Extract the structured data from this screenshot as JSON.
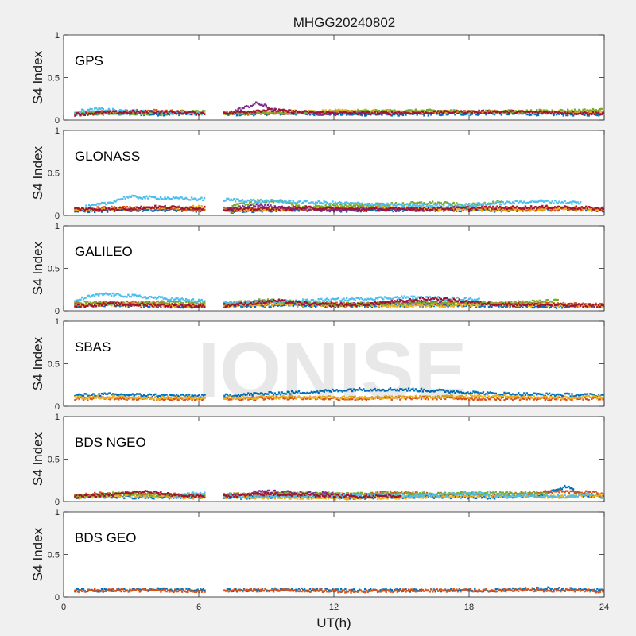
{
  "figure": {
    "title": "MHGG20240802",
    "xlabel": "UT(h)",
    "watermark": "IONISE"
  },
  "chart_data": {
    "type": "scatter",
    "title": "MHGG20240802",
    "xlabel": "UT(h)",
    "ylabel": "S4 Index",
    "xlim": [
      0,
      24
    ],
    "ylim": [
      0,
      1
    ],
    "xticks": [
      0,
      6,
      12,
      18,
      24
    ],
    "yticks": [
      0,
      0.5,
      1
    ],
    "ytick_labels": [
      "0",
      "0.5",
      "1"
    ],
    "grid": false,
    "data_gap": [
      6.3,
      7.1
    ],
    "colors": [
      "#0072BD",
      "#D95319",
      "#EDB120",
      "#7E2F8E",
      "#77AC30",
      "#4DBEEE",
      "#A2142F"
    ],
    "panels": [
      {
        "label": "GPS",
        "series": [
          {
            "color": "#0072BD",
            "x": [
              0.5,
              2,
              4,
              6,
              7.5,
              10,
              13,
              16,
              19,
              22,
              24
            ],
            "y": [
              0.07,
              0.08,
              0.07,
              0.08,
              0.07,
              0.08,
              0.07,
              0.07,
              0.08,
              0.07,
              0.07
            ]
          },
          {
            "color": "#D95319",
            "x": [
              0.5,
              2,
              4,
              6,
              7.5,
              10,
              13,
              16,
              19,
              22,
              24
            ],
            "y": [
              0.09,
              0.1,
              0.11,
              0.09,
              0.08,
              0.09,
              0.1,
              0.09,
              0.1,
              0.09,
              0.09
            ]
          },
          {
            "color": "#EDB120",
            "x": [
              0.5,
              2,
              4,
              6,
              7.5,
              10,
              13,
              16,
              19,
              22,
              24
            ],
            "y": [
              0.08,
              0.09,
              0.1,
              0.08,
              0.09,
              0.1,
              0.11,
              0.1,
              0.09,
              0.1,
              0.1
            ]
          },
          {
            "color": "#7E2F8E",
            "x": [
              7.5,
              8.6,
              9.5,
              11,
              13,
              15
            ],
            "y": [
              0.1,
              0.2,
              0.11,
              0.08,
              0.09,
              0.08
            ]
          },
          {
            "color": "#77AC30",
            "x": [
              0.5,
              2,
              4,
              6,
              7.5,
              10,
              13,
              16,
              19,
              22,
              24
            ],
            "y": [
              0.08,
              0.09,
              0.08,
              0.1,
              0.08,
              0.09,
              0.1,
              0.11,
              0.1,
              0.11,
              0.12
            ]
          },
          {
            "color": "#4DBEEE",
            "x": [
              0.5,
              1.5,
              3,
              5,
              6.2
            ],
            "y": [
              0.1,
              0.13,
              0.1,
              0.09,
              0.08
            ]
          },
          {
            "color": "#A2142F",
            "x": [
              0.5,
              2,
              4,
              6,
              7.5,
              9,
              11,
              13,
              16,
              19,
              22,
              24
            ],
            "y": [
              0.07,
              0.09,
              0.1,
              0.08,
              0.09,
              0.12,
              0.09,
              0.08,
              0.09,
              0.1,
              0.09,
              0.08
            ]
          }
        ]
      },
      {
        "label": "GLONASS",
        "series": [
          {
            "color": "#0072BD",
            "x": [
              0.5,
              2,
              4,
              6,
              7.5,
              10,
              13,
              16,
              19,
              22,
              24
            ],
            "y": [
              0.05,
              0.06,
              0.07,
              0.06,
              0.05,
              0.07,
              0.06,
              0.07,
              0.06,
              0.08,
              0.06
            ]
          },
          {
            "color": "#D95319",
            "x": [
              0.5,
              2,
              4,
              6,
              7.5,
              10,
              13,
              16,
              19,
              22,
              24
            ],
            "y": [
              0.07,
              0.09,
              0.08,
              0.07,
              0.08,
              0.07,
              0.09,
              0.08,
              0.09,
              0.07,
              0.08
            ]
          },
          {
            "color": "#EDB120",
            "x": [
              0.5,
              2,
              4,
              6,
              7.5,
              10,
              13,
              16,
              19,
              22,
              24
            ],
            "y": [
              0.06,
              0.07,
              0.09,
              0.1,
              0.06,
              0.08,
              0.1,
              0.08,
              0.07,
              0.09,
              0.07
            ]
          },
          {
            "color": "#7E2F8E",
            "x": [
              7.2,
              8.5,
              10,
              12,
              14,
              16
            ],
            "y": [
              0.07,
              0.12,
              0.09,
              0.07,
              0.08,
              0.07
            ]
          },
          {
            "color": "#77AC30",
            "x": [
              7.5,
              8.5,
              9.5,
              10.5,
              16.5,
              18,
              19.5
            ],
            "y": [
              0.12,
              0.15,
              0.18,
              0.1,
              0.15,
              0.12,
              0.17
            ]
          },
          {
            "color": "#4DBEEE",
            "x": [
              1,
              2,
              2.8,
              13,
              15,
              17,
              21,
              23
            ],
            "y": [
              0.1,
              0.15,
              0.22,
              0.14,
              0.12,
              0.11,
              0.17,
              0.15
            ]
          },
          {
            "color": "#A2142F",
            "x": [
              0.5,
              2,
              4,
              6,
              7.5,
              9,
              11,
              13,
              16,
              19,
              22,
              24
            ],
            "y": [
              0.08,
              0.07,
              0.1,
              0.09,
              0.07,
              0.08,
              0.09,
              0.07,
              0.08,
              0.09,
              0.1,
              0.08
            ]
          }
        ]
      },
      {
        "label": "GALILEO",
        "series": [
          {
            "color": "#0072BD",
            "x": [
              0.5,
              2,
              4,
              6,
              7.5,
              10,
              13,
              16,
              19,
              22,
              24
            ],
            "y": [
              0.06,
              0.07,
              0.06,
              0.05,
              0.06,
              0.07,
              0.06,
              0.07,
              0.06,
              0.05,
              0.06
            ]
          },
          {
            "color": "#D95319",
            "x": [
              0.5,
              2,
              4,
              6,
              7.5,
              10,
              13,
              16,
              19,
              22,
              24
            ],
            "y": [
              0.08,
              0.1,
              0.09,
              0.07,
              0.08,
              0.09,
              0.08,
              0.1,
              0.09,
              0.08,
              0.07
            ]
          },
          {
            "color": "#EDB120",
            "x": [
              0.5,
              2,
              4,
              6,
              7.5,
              10,
              13,
              16,
              19,
              22,
              24
            ],
            "y": [
              0.06,
              0.08,
              0.07,
              0.06,
              0.07,
              0.08,
              0.07,
              0.06,
              0.08,
              0.07,
              0.06
            ]
          },
          {
            "color": "#7E2F8E",
            "x": [
              7.5,
              9,
              10.5,
              13,
              15,
              17
            ],
            "y": [
              0.08,
              0.12,
              0.09,
              0.08,
              0.1,
              0.09
            ]
          },
          {
            "color": "#77AC30",
            "x": [
              0.5,
              3,
              5,
              7.5,
              9,
              10.5,
              12,
              20,
              22
            ],
            "y": [
              0.1,
              0.08,
              0.11,
              0.09,
              0.13,
              0.1,
              0.08,
              0.1,
              0.12
            ]
          },
          {
            "color": "#4DBEEE",
            "x": [
              0.5,
              1,
              1.8,
              7.5,
              15,
              16.5,
              18.5
            ],
            "y": [
              0.12,
              0.16,
              0.2,
              0.09,
              0.16,
              0.15,
              0.14
            ]
          },
          {
            "color": "#A2142F",
            "x": [
              0.5,
              2,
              4,
              6,
              7.5,
              9.5,
              11,
              13,
              16.5,
              19,
              22,
              24
            ],
            "y": [
              0.06,
              0.08,
              0.07,
              0.06,
              0.07,
              0.12,
              0.08,
              0.07,
              0.15,
              0.08,
              0.07,
              0.06
            ]
          }
        ]
      },
      {
        "label": "SBAS",
        "series": [
          {
            "color": "#0072BD",
            "x": [
              0.5,
              2,
              4,
              6.2,
              7.2,
              9,
              11,
              13,
              15,
              17,
              19,
              21,
              24
            ],
            "y": [
              0.13,
              0.14,
              0.13,
              0.12,
              0.13,
              0.15,
              0.17,
              0.2,
              0.2,
              0.18,
              0.15,
              0.14,
              0.13
            ]
          },
          {
            "color": "#D95319",
            "x": [
              0.5,
              2,
              4,
              6.2,
              7.2,
              10,
              13,
              16,
              19,
              22,
              24
            ],
            "y": [
              0.09,
              0.1,
              0.09,
              0.09,
              0.09,
              0.1,
              0.09,
              0.1,
              0.09,
              0.09,
              0.09
            ]
          },
          {
            "color": "#EDB120",
            "x": [
              0.5,
              2,
              4,
              6.2,
              7.2,
              10,
              13,
              16,
              19,
              22,
              24
            ],
            "y": [
              0.1,
              0.11,
              0.1,
              0.1,
              0.1,
              0.11,
              0.1,
              0.11,
              0.12,
              0.1,
              0.11
            ]
          }
        ]
      },
      {
        "label": "BDS NGEO",
        "series": [
          {
            "color": "#0072BD",
            "x": [
              0.5,
              2,
              4,
              6,
              7.5,
              10,
              13,
              16,
              19,
              21,
              22.3,
              23,
              24
            ],
            "y": [
              0.05,
              0.06,
              0.05,
              0.06,
              0.05,
              0.06,
              0.05,
              0.06,
              0.05,
              0.07,
              0.18,
              0.08,
              0.06
            ]
          },
          {
            "color": "#D95319",
            "x": [
              0.5,
              2,
              4,
              6,
              7.5,
              10,
              13,
              14.5,
              16,
              19,
              22,
              24
            ],
            "y": [
              0.07,
              0.1,
              0.09,
              0.07,
              0.08,
              0.1,
              0.08,
              0.11,
              0.09,
              0.08,
              0.12,
              0.1
            ]
          },
          {
            "color": "#EDB120",
            "x": [
              0.5,
              2,
              4,
              6,
              7.5,
              10,
              13,
              16,
              19,
              22,
              24
            ],
            "y": [
              0.05,
              0.07,
              0.06,
              0.05,
              0.06,
              0.05,
              0.04,
              0.06,
              0.07,
              0.06,
              0.08
            ]
          },
          {
            "color": "#7E2F8E",
            "x": [
              7.5,
              9,
              11,
              13
            ],
            "y": [
              0.08,
              0.12,
              0.1,
              0.08
            ]
          },
          {
            "color": "#77AC30",
            "x": [
              0.5,
              2.5,
              4,
              19.5,
              21.5
            ],
            "y": [
              0.06,
              0.1,
              0.08,
              0.1,
              0.09
            ]
          },
          {
            "color": "#4DBEEE",
            "x": [
              5,
              6,
              7.5,
              16.5,
              18,
              20,
              22,
              23.5
            ],
            "y": [
              0.07,
              0.1,
              0.06,
              0.08,
              0.1,
              0.07,
              0.06,
              0.09
            ]
          },
          {
            "color": "#A2142F",
            "x": [
              0.5,
              2,
              3.5,
              5,
              6,
              7.5,
              9,
              11,
              13,
              15
            ],
            "y": [
              0.06,
              0.08,
              0.12,
              0.08,
              0.06,
              0.07,
              0.09,
              0.08,
              0.06,
              0.07
            ]
          }
        ]
      },
      {
        "label": "BDS GEO",
        "series": [
          {
            "color": "#0072BD",
            "x": [
              0.5,
              2,
              4,
              6.2,
              7.2,
              10,
              13,
              16,
              19,
              21.5,
              24
            ],
            "y": [
              0.08,
              0.08,
              0.09,
              0.08,
              0.08,
              0.09,
              0.08,
              0.08,
              0.08,
              0.1,
              0.08
            ]
          },
          {
            "color": "#D95319",
            "x": [
              0.5,
              2,
              4,
              6.2,
              7.2,
              10,
              13,
              16,
              19,
              22,
              24
            ],
            "y": [
              0.07,
              0.08,
              0.08,
              0.07,
              0.08,
              0.08,
              0.07,
              0.08,
              0.08,
              0.08,
              0.07
            ]
          }
        ]
      }
    ]
  }
}
